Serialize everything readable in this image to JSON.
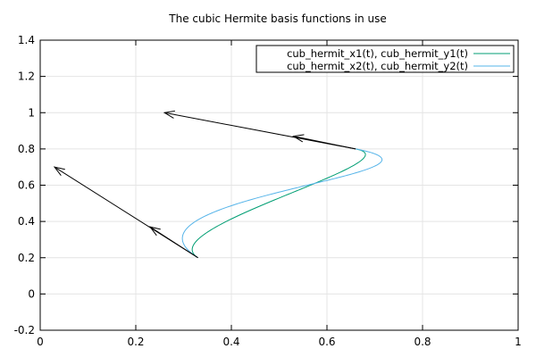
{
  "chart_data": {
    "type": "line",
    "title": "The cubic Hermite basis functions in use",
    "xlabel": "",
    "ylabel": "",
    "xlim": [
      0,
      1
    ],
    "ylim": [
      -0.2,
      1.4
    ],
    "xticks": [
      0,
      0.2,
      0.4,
      0.6,
      0.8,
      1
    ],
    "yticks": [
      -0.2,
      0,
      0.2,
      0.4,
      0.6,
      0.8,
      1,
      1.2,
      1.4
    ],
    "xtick_labels": [
      "0",
      "0.2",
      "0.4",
      "0.6",
      "0.8",
      "1"
    ],
    "ytick_labels": [
      "-0.2",
      "0",
      "0.2",
      "0.4",
      "0.6",
      "0.8",
      "1",
      "1.2",
      "1.4"
    ],
    "grid": true,
    "legend_position": "top-right",
    "series": [
      {
        "name": "cub_hermit_x1(t), cub_hermit_y1(t)",
        "color": "#009e73",
        "p0": [
          0.33,
          0.2
        ],
        "p1": [
          0.66,
          0.8
        ],
        "m0": [
          -0.3,
          0.5
        ],
        "m1": [
          -0.4,
          0.2
        ]
      },
      {
        "name": "cub_hermit_x2(t), cub_hermit_y2(t)",
        "color": "#56b4e9",
        "p0": [
          0.33,
          0.2
        ],
        "p1": [
          0.66,
          0.8
        ],
        "m0": [
          -0.6,
          1.0
        ],
        "m1": [
          -0.8,
          0.4
        ]
      }
    ],
    "arrows": [
      {
        "from": [
          0.33,
          0.2
        ],
        "to": [
          0.03,
          0.7
        ]
      },
      {
        "from": [
          0.33,
          0.2
        ],
        "to": [
          0.23,
          0.37
        ]
      },
      {
        "from": [
          0.66,
          0.8
        ],
        "to": [
          0.26,
          1.0
        ]
      },
      {
        "from": [
          0.66,
          0.8
        ],
        "to": [
          0.53,
          0.87
        ]
      }
    ],
    "arrow_color": "#000000"
  }
}
